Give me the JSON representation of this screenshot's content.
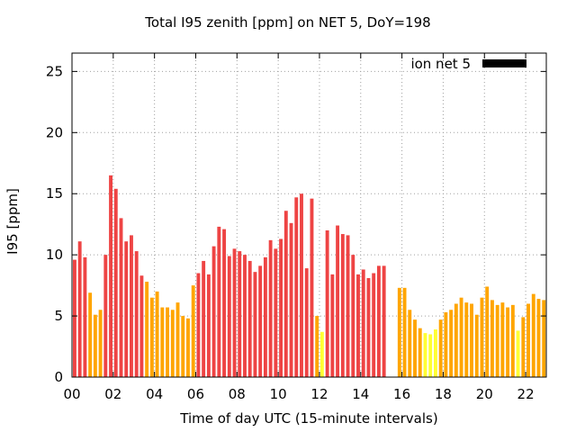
{
  "chart_data": {
    "type": "bar",
    "title": "Total I95 zenith [ppm] on NET 5, DoY=198",
    "xlabel": "Time of day UTC (15-minute intervals)",
    "ylabel": "I95 [ppm]",
    "xlim": [
      0,
      23
    ],
    "ylim": [
      0,
      26.5
    ],
    "x_ticks": [
      "00",
      "02",
      "04",
      "06",
      "08",
      "10",
      "12",
      "14",
      "16",
      "18",
      "20",
      "22"
    ],
    "y_ticks": [
      "0",
      "5",
      "10",
      "15",
      "20",
      "25"
    ],
    "grid": true,
    "legend": {
      "position": "top-right",
      "entries": [
        {
          "label": "ion net 5",
          "color": "#000000"
        }
      ]
    },
    "bar_colors": {
      "red": "#ee4444",
      "orange": "#ffa500",
      "yellow": "#ffff33"
    },
    "color_rule": "red >= 8, orange 4-8, yellow < 4",
    "bars": [
      {
        "x": 0.0,
        "value": 9.6
      },
      {
        "x": 0.25,
        "value": 11.1
      },
      {
        "x": 0.5,
        "value": 9.8
      },
      {
        "x": 0.75,
        "value": 6.9
      },
      {
        "x": 1.0,
        "value": 5.1
      },
      {
        "x": 1.25,
        "value": 5.5
      },
      {
        "x": 1.5,
        "value": 10.0
      },
      {
        "x": 1.75,
        "value": 16.5
      },
      {
        "x": 2.0,
        "value": 15.4
      },
      {
        "x": 2.25,
        "value": 13.0
      },
      {
        "x": 2.5,
        "value": 11.1
      },
      {
        "x": 2.75,
        "value": 11.6
      },
      {
        "x": 3.0,
        "value": 10.3
      },
      {
        "x": 3.25,
        "value": 8.3
      },
      {
        "x": 3.5,
        "value": 7.8
      },
      {
        "x": 3.75,
        "value": 6.5
      },
      {
        "x": 4.0,
        "value": 7.0
      },
      {
        "x": 4.25,
        "value": 5.7
      },
      {
        "x": 4.5,
        "value": 5.7
      },
      {
        "x": 4.75,
        "value": 5.5
      },
      {
        "x": 5.0,
        "value": 6.1
      },
      {
        "x": 5.25,
        "value": 5.0
      },
      {
        "x": 5.5,
        "value": 4.8
      },
      {
        "x": 5.75,
        "value": 7.5
      },
      {
        "x": 6.0,
        "value": 8.5
      },
      {
        "x": 6.25,
        "value": 9.5
      },
      {
        "x": 6.5,
        "value": 8.4
      },
      {
        "x": 6.75,
        "value": 10.7
      },
      {
        "x": 7.0,
        "value": 12.3
      },
      {
        "x": 7.25,
        "value": 12.1
      },
      {
        "x": 7.5,
        "value": 9.9
      },
      {
        "x": 7.75,
        "value": 10.5
      },
      {
        "x": 8.0,
        "value": 10.3
      },
      {
        "x": 8.25,
        "value": 10.0
      },
      {
        "x": 8.5,
        "value": 9.5
      },
      {
        "x": 8.75,
        "value": 8.6
      },
      {
        "x": 9.0,
        "value": 9.1
      },
      {
        "x": 9.25,
        "value": 9.8
      },
      {
        "x": 9.5,
        "value": 11.2
      },
      {
        "x": 9.75,
        "value": 10.5
      },
      {
        "x": 10.0,
        "value": 11.3
      },
      {
        "x": 10.25,
        "value": 13.6
      },
      {
        "x": 10.5,
        "value": 12.6
      },
      {
        "x": 10.75,
        "value": 14.7
      },
      {
        "x": 11.0,
        "value": 15.0
      },
      {
        "x": 11.25,
        "value": 8.9
      },
      {
        "x": 11.5,
        "value": 14.6
      },
      {
        "x": 11.75,
        "value": 5.0
      },
      {
        "x": 12.0,
        "value": 3.7
      },
      {
        "x": 12.25,
        "value": 12.0
      },
      {
        "x": 12.5,
        "value": 8.4
      },
      {
        "x": 12.75,
        "value": 12.4
      },
      {
        "x": 13.0,
        "value": 11.7
      },
      {
        "x": 13.25,
        "value": 11.6
      },
      {
        "x": 13.5,
        "value": 10.0
      },
      {
        "x": 13.75,
        "value": 8.4
      },
      {
        "x": 14.0,
        "value": 8.8
      },
      {
        "x": 14.25,
        "value": 8.1
      },
      {
        "x": 14.5,
        "value": 8.5
      },
      {
        "x": 14.75,
        "value": 9.1
      },
      {
        "x": 15.0,
        "value": 9.1
      },
      {
        "x": 15.75,
        "value": 7.3
      },
      {
        "x": 16.0,
        "value": 7.3
      },
      {
        "x": 16.25,
        "value": 5.5
      },
      {
        "x": 16.5,
        "value": 4.7
      },
      {
        "x": 16.75,
        "value": 4.0
      },
      {
        "x": 17.0,
        "value": 3.6
      },
      {
        "x": 17.25,
        "value": 3.5
      },
      {
        "x": 17.5,
        "value": 3.9
      },
      {
        "x": 17.75,
        "value": 4.7
      },
      {
        "x": 18.0,
        "value": 5.3
      },
      {
        "x": 18.25,
        "value": 5.5
      },
      {
        "x": 18.5,
        "value": 6.0
      },
      {
        "x": 18.75,
        "value": 6.5
      },
      {
        "x": 19.0,
        "value": 6.1
      },
      {
        "x": 19.25,
        "value": 6.0
      },
      {
        "x": 19.5,
        "value": 5.1
      },
      {
        "x": 19.75,
        "value": 6.5
      },
      {
        "x": 20.0,
        "value": 7.4
      },
      {
        "x": 20.25,
        "value": 6.3
      },
      {
        "x": 20.5,
        "value": 5.9
      },
      {
        "x": 20.75,
        "value": 6.1
      },
      {
        "x": 21.0,
        "value": 5.7
      },
      {
        "x": 21.25,
        "value": 5.9
      },
      {
        "x": 21.5,
        "value": 3.8
      },
      {
        "x": 21.75,
        "value": 4.9
      },
      {
        "x": 22.0,
        "value": 6.0
      },
      {
        "x": 22.25,
        "value": 6.8
      },
      {
        "x": 22.5,
        "value": 6.4
      },
      {
        "x": 22.75,
        "value": 6.3
      }
    ]
  }
}
